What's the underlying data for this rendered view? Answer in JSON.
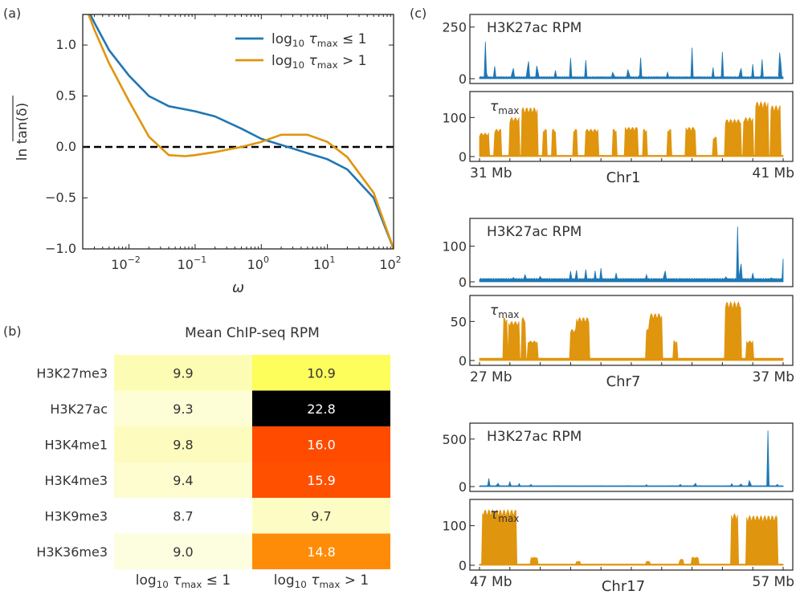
{
  "colors": {
    "blue": "#1f77b4",
    "orange": "#e0950e",
    "dash": "#000000"
  },
  "panel_labels": {
    "a": "(a)",
    "b": "(b)",
    "c": "(c)"
  },
  "panel_a": {
    "xlabel": "ω",
    "ylabel": "ln tan(δ)",
    "xtick_labels": [
      "10",
      "10",
      "10",
      "10",
      "10"
    ],
    "xtick_exps": [
      "−2",
      "−1",
      "0",
      "1",
      "2"
    ],
    "ytick_labels": [
      "1.0",
      "0.5",
      "0.0",
      "−0.5",
      "−1.0"
    ],
    "legend": [
      {
        "prefix": "log",
        "sub": "10",
        "tau": "τ",
        "tausub": "max",
        "op": "≤ 1"
      },
      {
        "prefix": "log",
        "sub": "10",
        "tau": "τ",
        "tausub": "max",
        "op": "> 1"
      }
    ]
  },
  "panel_b": {
    "title": "Mean ChIP-seq RPM",
    "rows": [
      "H3K27me3",
      "H3K27ac",
      "H3K4me1",
      "H3K4me3",
      "H3K9me3",
      "H3K36me3"
    ],
    "col_labels": [
      {
        "prefix": "log",
        "sub": "10",
        "tau": "τ",
        "tausub": "max",
        "op": "≤ 1"
      },
      {
        "prefix": "log",
        "sub": "10",
        "tau": "τ",
        "tausub": "max",
        "op": "> 1"
      }
    ],
    "values": [
      [
        "9.9",
        "10.9"
      ],
      [
        "9.3",
        "22.8"
      ],
      [
        "9.8",
        "16.0"
      ],
      [
        "9.4",
        "15.9"
      ],
      [
        "8.7",
        "9.7"
      ],
      [
        "9.0",
        "14.8"
      ]
    ],
    "cell_colors": [
      [
        "#fdfcb4",
        "#fdfd5c"
      ],
      [
        "#fdfdd6",
        "#000000"
      ],
      [
        "#fdfcbe",
        "#fe4b00"
      ],
      [
        "#fdfdd0",
        "#ff5000"
      ],
      [
        "#ffffff",
        "#fdfcc4"
      ],
      [
        "#fdfde0",
        "#ff8c08"
      ]
    ]
  },
  "panel_c": {
    "top_label": "H3K27ac RPM",
    "bottom_label": "τ",
    "bottom_label_sub": "max",
    "blocks": [
      {
        "chrom": "Chr1",
        "start": "31 Mb",
        "end": "41 Mb",
        "top_ticks": [
          "250",
          "0"
        ],
        "bottom_ticks": [
          "100",
          "0"
        ]
      },
      {
        "chrom": "Chr7",
        "start": "27 Mb",
        "end": "37 Mb",
        "top_ticks": [
          "100",
          "0"
        ],
        "bottom_ticks": [
          "50",
          "0"
        ]
      },
      {
        "chrom": "Chr17",
        "start": "47 Mb",
        "end": "57 Mb",
        "top_ticks": [
          "500",
          "0"
        ],
        "bottom_ticks": [
          "100",
          "0"
        ]
      }
    ]
  },
  "chart_data": [
    {
      "type": "line",
      "xlabel": "ω",
      "ylabel": "ln tan(δ)",
      "xscale": "log",
      "xlim": [
        0.002,
        100
      ],
      "ylim": [
        -1.0,
        1.3
      ],
      "x": [
        0.002,
        0.003,
        0.005,
        0.01,
        0.02,
        0.04,
        0.07,
        0.1,
        0.2,
        0.5,
        1,
        2,
        5,
        10,
        20,
        50,
        100
      ],
      "series": [
        {
          "name": "log10 τmax ≤ 1",
          "values": [
            1.45,
            1.22,
            0.95,
            0.7,
            0.5,
            0.4,
            0.37,
            0.35,
            0.3,
            0.18,
            0.08,
            0.02,
            -0.06,
            -0.12,
            -0.22,
            -0.5,
            -1.0
          ]
        },
        {
          "name": "log10 τmax > 1",
          "values": [
            1.45,
            1.15,
            0.82,
            0.45,
            0.1,
            -0.08,
            -0.09,
            -0.08,
            -0.05,
            0.0,
            0.05,
            0.12,
            0.12,
            0.05,
            -0.1,
            -0.45,
            -1.0
          ]
        }
      ],
      "reference_line": {
        "y": 0.0,
        "style": "dashed"
      }
    },
    {
      "type": "heatmap",
      "title": "Mean ChIP-seq RPM",
      "rows": [
        "H3K27me3",
        "H3K27ac",
        "H3K4me1",
        "H3K4me3",
        "H3K9me3",
        "H3K36me3"
      ],
      "columns": [
        "log10 τmax ≤ 1",
        "log10 τmax > 1"
      ],
      "values": [
        [
          9.9,
          10.9
        ],
        [
          9.3,
          22.8
        ],
        [
          9.8,
          16.0
        ],
        [
          9.4,
          15.9
        ],
        [
          8.7,
          9.7
        ],
        [
          9.0,
          14.8
        ]
      ]
    },
    {
      "type": "area",
      "chrom": "Chr1",
      "xlim_Mb": [
        31,
        41
      ],
      "h3k27ac_ylim": [
        0,
        280
      ],
      "tau_ylim": [
        0,
        150
      ],
      "h3k27ac_peaks": [
        [
          31.2,
          230
        ],
        [
          31.5,
          60
        ],
        [
          32.1,
          90
        ],
        [
          32.6,
          150
        ],
        [
          32.9,
          110
        ],
        [
          33.5,
          40
        ],
        [
          34.0,
          100
        ],
        [
          34.5,
          90
        ],
        [
          35.4,
          55
        ],
        [
          35.9,
          80
        ],
        [
          36.3,
          130
        ],
        [
          37.2,
          40
        ],
        [
          38.0,
          150
        ],
        [
          38.7,
          70
        ],
        [
          39.0,
          130
        ],
        [
          39.6,
          90
        ],
        [
          40.0,
          70
        ],
        [
          40.3,
          120
        ],
        [
          40.9,
          225
        ]
      ],
      "tau_blocks": [
        [
          31.0,
          31.3,
          60
        ],
        [
          31.5,
          31.7,
          70
        ],
        [
          32.0,
          32.3,
          100
        ],
        [
          32.4,
          32.9,
          125
        ],
        [
          33.1,
          33.2,
          70
        ],
        [
          33.4,
          33.5,
          70
        ],
        [
          34.1,
          34.2,
          70
        ],
        [
          34.5,
          34.9,
          70
        ],
        [
          35.4,
          35.5,
          70
        ],
        [
          35.8,
          36.2,
          75
        ],
        [
          36.4,
          36.5,
          70
        ],
        [
          37.2,
          37.3,
          70
        ],
        [
          37.8,
          38.1,
          75
        ],
        [
          38.7,
          38.8,
          50
        ],
        [
          39.1,
          39.6,
          95
        ],
        [
          39.7,
          40.0,
          100
        ],
        [
          40.1,
          40.5,
          140
        ],
        [
          40.6,
          40.9,
          130
        ]
      ]
    },
    {
      "type": "area",
      "chrom": "Chr7",
      "xlim_Mb": [
        27,
        37
      ],
      "h3k27ac_ylim": [
        0,
        160
      ],
      "tau_ylim": [
        0,
        75
      ],
      "h3k27ac_peaks": [
        [
          28.1,
          22
        ],
        [
          28.5,
          20
        ],
        [
          29.0,
          15
        ],
        [
          30.0,
          30
        ],
        [
          30.2,
          42
        ],
        [
          30.5,
          35
        ],
        [
          30.8,
          40
        ],
        [
          31.0,
          38
        ],
        [
          31.5,
          25
        ],
        [
          32.5,
          20
        ],
        [
          33.1,
          55
        ],
        [
          33.6,
          15
        ],
        [
          35.1,
          25
        ],
        [
          35.5,
          155
        ],
        [
          35.6,
          90
        ],
        [
          36.0,
          25
        ],
        [
          36.6,
          20
        ],
        [
          37.0,
          65
        ]
      ],
      "tau_blocks": [
        [
          27.8,
          27.9,
          55
        ],
        [
          27.95,
          28.3,
          50
        ],
        [
          28.4,
          28.5,
          55
        ],
        [
          28.6,
          28.9,
          25
        ],
        [
          30.0,
          30.2,
          40
        ],
        [
          30.2,
          30.6,
          55
        ],
        [
          32.5,
          32.6,
          40
        ],
        [
          32.6,
          33.0,
          60
        ],
        [
          33.4,
          33.5,
          25
        ],
        [
          35.1,
          35.4,
          75
        ],
        [
          35.4,
          35.6,
          75
        ],
        [
          35.8,
          36.0,
          25
        ]
      ]
    },
    {
      "type": "area",
      "chrom": "Chr17",
      "xlim_Mb": [
        47,
        57
      ],
      "h3k27ac_ylim": [
        0,
        600
      ],
      "tau_ylim": [
        0,
        150
      ],
      "h3k27ac_peaks": [
        [
          47.3,
          110
        ],
        [
          47.6,
          60
        ],
        [
          48.0,
          50
        ],
        [
          48.3,
          40
        ],
        [
          48.7,
          30
        ],
        [
          52.5,
          20
        ],
        [
          53.6,
          40
        ],
        [
          54.1,
          60
        ],
        [
          55.3,
          40
        ],
        [
          55.6,
          50
        ],
        [
          55.9,
          110
        ],
        [
          56.5,
          590
        ],
        [
          56.8,
          30
        ]
      ],
      "tau_blocks": [
        [
          47.1,
          48.2,
          140
        ],
        [
          48.7,
          48.9,
          20
        ],
        [
          50.2,
          50.3,
          10
        ],
        [
          52.5,
          52.6,
          10
        ],
        [
          53.6,
          53.7,
          15
        ],
        [
          54.0,
          54.2,
          20
        ],
        [
          55.3,
          55.5,
          130
        ],
        [
          55.8,
          56.8,
          125
        ]
      ]
    }
  ]
}
